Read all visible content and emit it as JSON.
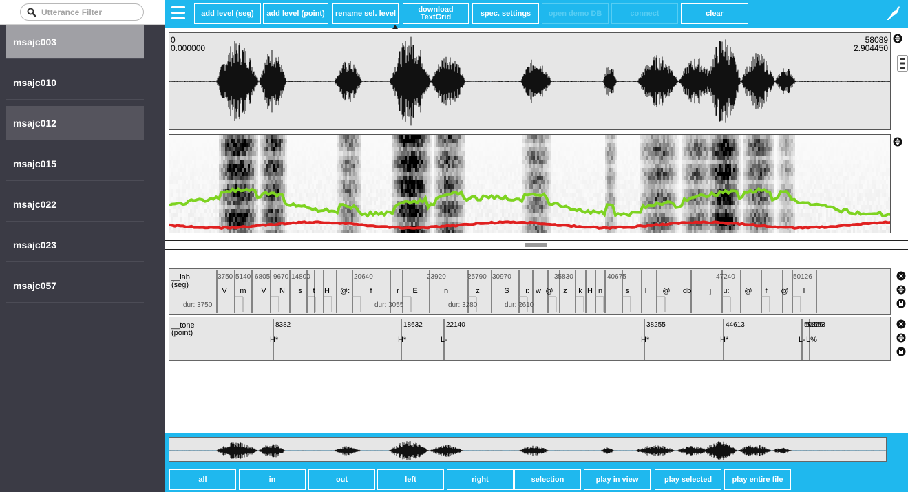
{
  "sidebar": {
    "filter_placeholder": "Utterance Filter",
    "utterances": [
      "msajc003",
      "msajc010",
      "msajc012",
      "msajc015",
      "msajc022",
      "msajc023",
      "msajc057"
    ],
    "selected_index": 0,
    "hover_index": 2
  },
  "toolbar": {
    "buttons": [
      {
        "label": "add level (seg)",
        "enabled": true
      },
      {
        "label": "add level (point)",
        "enabled": true
      },
      {
        "label": "rename sel. level",
        "enabled": true
      },
      {
        "label": "download TextGrid",
        "enabled": true
      },
      {
        "label": "spec. settings",
        "enabled": true
      },
      {
        "label": "open demo DB",
        "enabled": false
      },
      {
        "label": "connect",
        "enabled": false
      },
      {
        "label": "clear",
        "enabled": true
      }
    ]
  },
  "oscillogram": {
    "start_sample": "0",
    "start_time": "0.000000",
    "end_sample": "58089",
    "end_time": "2.904450"
  },
  "levels": [
    {
      "name": "__lab",
      "type": "(seg)",
      "boundaries": [
        "3750",
        "5140",
        "6805",
        "9670",
        "14800",
        "20640",
        "23920",
        "25790",
        "30970",
        "35830",
        "40675",
        "47240",
        "50126"
      ],
      "labels": [
        "V",
        "m",
        "V",
        "N",
        "s",
        "t",
        "H",
        "@:",
        "f",
        "r",
        "E",
        "n",
        "z",
        "S",
        "i:",
        "w",
        "@",
        "z",
        "k",
        "H",
        "n",
        "s",
        "I",
        "@",
        "db",
        "j",
        "u:",
        "@",
        "f",
        "@",
        "l"
      ],
      "durations": [
        "dur: 3750",
        "dur: 3055",
        "dur: 3280",
        "dur: 2610"
      ]
    },
    {
      "name": "__tone",
      "type": "(point)",
      "points": [
        {
          "sample": "8382",
          "label": "H*"
        },
        {
          "sample": "18632",
          "label": "H*"
        },
        {
          "sample": "22140",
          "label": "L-"
        },
        {
          "sample": "38255",
          "label": "H*"
        },
        {
          "sample": "44613",
          "label": "H*"
        },
        {
          "sample": "50856",
          "label": "L-"
        },
        {
          "sample": "51553",
          "label": "L%"
        }
      ]
    }
  ],
  "playback": {
    "buttons": [
      "all",
      "in",
      "out",
      "left",
      "right",
      "selection",
      "play in view",
      "play selected",
      "play entire file"
    ]
  },
  "colors": {
    "accent": "#1fb8ee",
    "sidebar": "#3b3b45",
    "f0_track": "#7ed321",
    "formant_track": "#e02020"
  },
  "icons": {
    "search": "search-icon",
    "menu": "hamburger-menu-icon",
    "logo": "emu-bird-logo-icon",
    "resize": "resize-icon",
    "delete": "close-icon",
    "save": "save-icon",
    "more": "vertical-dots-icon"
  }
}
